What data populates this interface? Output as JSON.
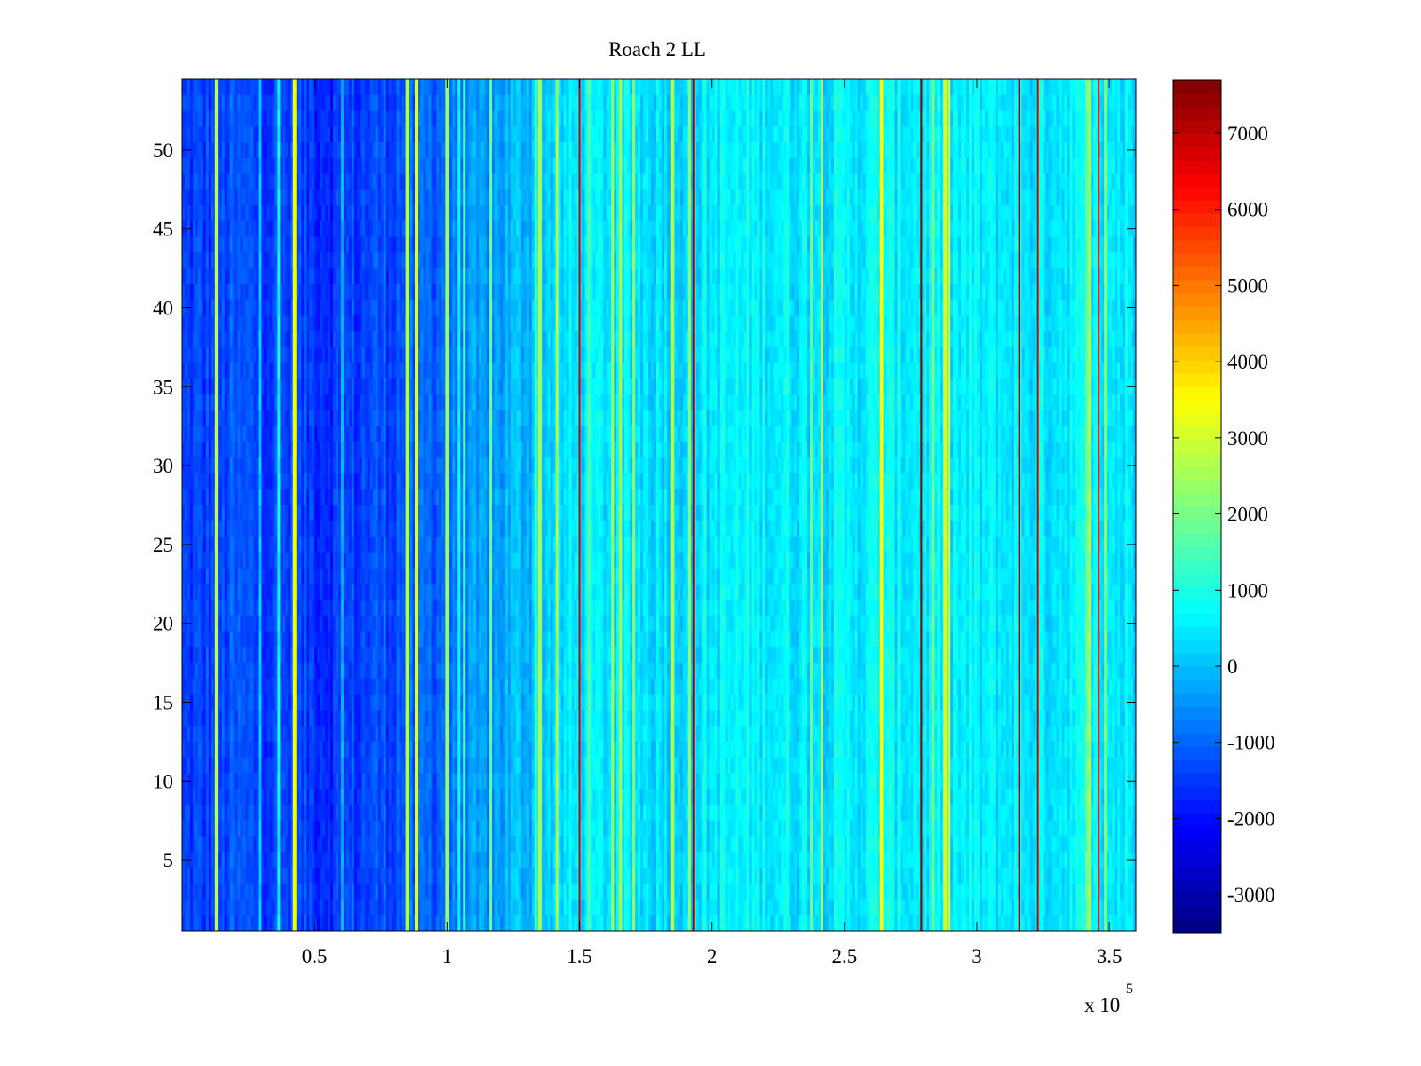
{
  "chart_data": {
    "type": "heatmap",
    "title": "Roach 2 LL",
    "xlabel": "",
    "ylabel": "",
    "x_exponent_label": "x 10",
    "x_exponent_power": "5",
    "xlim": [
      0,
      360000
    ],
    "ylim": [
      0.5,
      54.5
    ],
    "xticks": [
      50000,
      100000,
      150000,
      200000,
      250000,
      300000,
      350000
    ],
    "xtick_labels": [
      "0.5",
      "1",
      "1.5",
      "2",
      "2.5",
      "3",
      "3.5"
    ],
    "yticks": [
      5,
      10,
      15,
      20,
      25,
      30,
      35,
      40,
      45,
      50
    ],
    "ytick_labels": [
      "5",
      "10",
      "15",
      "20",
      "25",
      "30",
      "35",
      "40",
      "45",
      "50"
    ],
    "rows": 54,
    "colormap": "jet",
    "clim": [
      -3500,
      7700
    ],
    "colorbar_ticks": [
      -3000,
      -2000,
      -1000,
      0,
      1000,
      2000,
      3000,
      4000,
      5000,
      6000,
      7000
    ],
    "colorbar_tick_labels": [
      "-3000",
      "-2000",
      "-1000",
      "0",
      "1000",
      "2000",
      "3000",
      "4000",
      "5000",
      "6000",
      "7000"
    ],
    "column_profile": {
      "x": [
        0,
        20000,
        40000,
        60000,
        80000,
        100000,
        120000,
        140000,
        160000,
        180000,
        200000,
        220000,
        240000,
        260000,
        280000,
        300000,
        320000,
        340000,
        360000
      ],
      "value": [
        -1500,
        -1300,
        -1400,
        -1500,
        -1200,
        -900,
        -300,
        300,
        500,
        400,
        500,
        600,
        500,
        600,
        600,
        500,
        500,
        600,
        400
      ]
    },
    "bright_stripes": [
      {
        "x": 13000,
        "value": 2800
      },
      {
        "x": 42500,
        "value": 3400
      },
      {
        "x": 85000,
        "value": 2700
      },
      {
        "x": 88500,
        "value": 3200
      },
      {
        "x": 100000,
        "value": 2400
      },
      {
        "x": 135000,
        "value": 2600
      },
      {
        "x": 185000,
        "value": 2800
      },
      {
        "x": 264000,
        "value": 3500
      },
      {
        "x": 288000,
        "value": 3000
      }
    ],
    "dark_stripes": [
      {
        "x": 150000,
        "value": 6800
      },
      {
        "x": 193000,
        "value": 7200
      },
      {
        "x": 279000,
        "value": 7600
      },
      {
        "x": 316000,
        "value": 7400
      },
      {
        "x": 323000,
        "value": 6900
      },
      {
        "x": 346000,
        "value": 6600
      }
    ]
  }
}
